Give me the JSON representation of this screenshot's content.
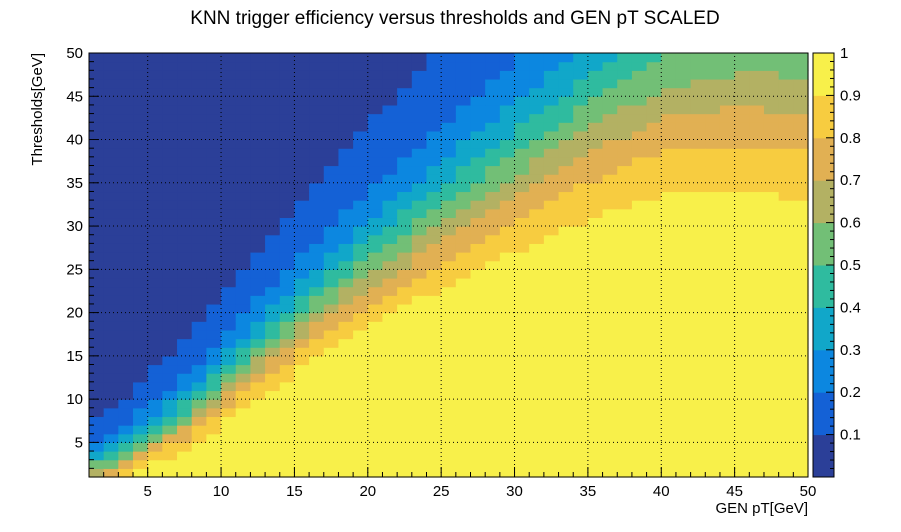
{
  "chart_data": {
    "type": "heatmap",
    "title": "KNN trigger efficiency versus thresholds and GEN pT SCALED",
    "xlabel": "GEN pT[GeV]",
    "ylabel": "Thresholds[GeV]",
    "xlim": [
      1,
      50
    ],
    "ylim": [
      1,
      50
    ],
    "zlim": [
      0,
      1
    ],
    "x_ticks": [
      "5",
      "10",
      "15",
      "20",
      "25",
      "30",
      "35",
      "40",
      "45",
      "50"
    ],
    "y_ticks": [
      "5",
      "10",
      "15",
      "20",
      "25",
      "30",
      "35",
      "40",
      "45",
      "50"
    ],
    "z_ticks": [
      "0.1",
      "0.2",
      "0.3",
      "0.4",
      "0.5",
      "0.6",
      "0.7",
      "0.8",
      "0.9",
      "1"
    ],
    "grid": true,
    "colormap": [
      "#2b3f98",
      "#1461d6",
      "#0c87e0",
      "#11a7c9",
      "#2fbb9f",
      "#72bf76",
      "#b3b163",
      "#e1b053",
      "#f7cc40",
      "#f8f04a"
    ],
    "cells_note": "",
    "turn_on_threshold_vs_pt": {
      "pt": [
        2,
        5,
        8,
        10,
        12,
        15,
        17,
        20,
        25,
        30,
        35,
        40,
        45,
        50
      ],
      "threshold_at_50pct_efficiency": [
        2,
        5,
        8,
        11,
        14,
        18,
        21,
        25,
        31,
        37,
        43,
        48,
        50,
        50
      ]
    }
  }
}
